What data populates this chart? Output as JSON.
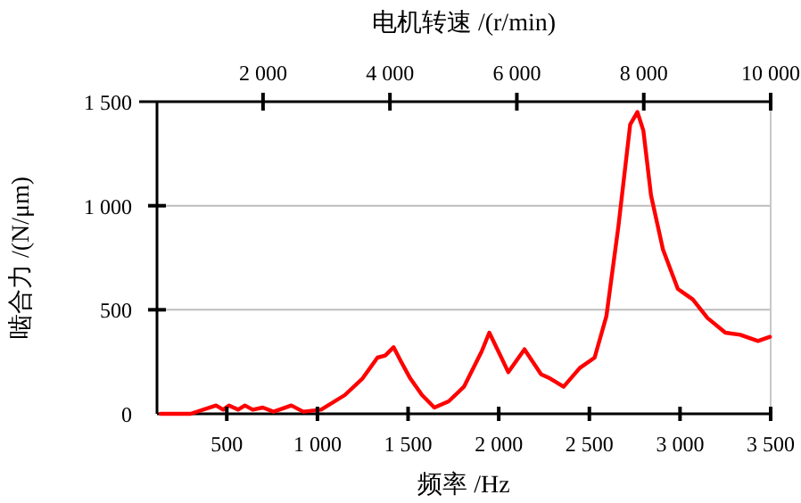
{
  "chart_data": {
    "type": "line",
    "xlabel": "频率 /Hz",
    "ylabel": "啮合力 /(N/μm)",
    "x2label": "电机转速 /(r/min)",
    "xlim": [
      115,
      3500
    ],
    "ylim": [
      0,
      1500
    ],
    "x2lim": [
      329,
      10000
    ],
    "xticks": [
      {
        "value": 500,
        "label": "500"
      },
      {
        "value": 1000,
        "label": "1 000"
      },
      {
        "value": 1500,
        "label": "1 500"
      },
      {
        "value": 2000,
        "label": "2 000"
      },
      {
        "value": 2500,
        "label": "2 500"
      },
      {
        "value": 3000,
        "label": "3 000"
      },
      {
        "value": 3500,
        "label": "3 500"
      }
    ],
    "yticks": [
      {
        "value": 0,
        "label": "0"
      },
      {
        "value": 500,
        "label": "500"
      },
      {
        "value": 1000,
        "label": "1 000"
      },
      {
        "value": 1500,
        "label": "1 500"
      }
    ],
    "x2ticks": [
      {
        "value": 2000,
        "label": "2 000"
      },
      {
        "value": 4000,
        "label": "4 000"
      },
      {
        "value": 6000,
        "label": "6 000"
      },
      {
        "value": 8000,
        "label": "8 000"
      },
      {
        "value": 10000,
        "label": "10 000"
      }
    ],
    "grid": "y",
    "marker": "none",
    "line_style": "solid",
    "series": [
      {
        "color": "#ff0000",
        "x": [
          136,
          300,
          441,
          480,
          513,
          562,
          600,
          643,
          699,
          758,
          856,
          922,
          1020,
          1151,
          1249,
          1331,
          1374,
          1420,
          1462,
          1512,
          1577,
          1645,
          1724,
          1808,
          1906,
          1948,
          1998,
          2053,
          2142,
          2234,
          2283,
          2358,
          2447,
          2529,
          2594,
          2660,
          2725,
          2765,
          2798,
          2840,
          2906,
          2988,
          3070,
          3152,
          3250,
          3332,
          3430,
          3496
        ],
        "values": [
          0,
          0,
          40,
          20,
          40,
          20,
          40,
          20,
          30,
          10,
          40,
          10,
          20,
          90,
          170,
          270,
          280,
          320,
          250,
          170,
          90,
          30,
          60,
          130,
          300,
          390,
          300,
          200,
          310,
          190,
          170,
          130,
          220,
          270,
          470,
          900,
          1390,
          1450,
          1360,
          1050,
          790,
          600,
          550,
          460,
          390,
          380,
          350,
          370
        ]
      }
    ]
  }
}
